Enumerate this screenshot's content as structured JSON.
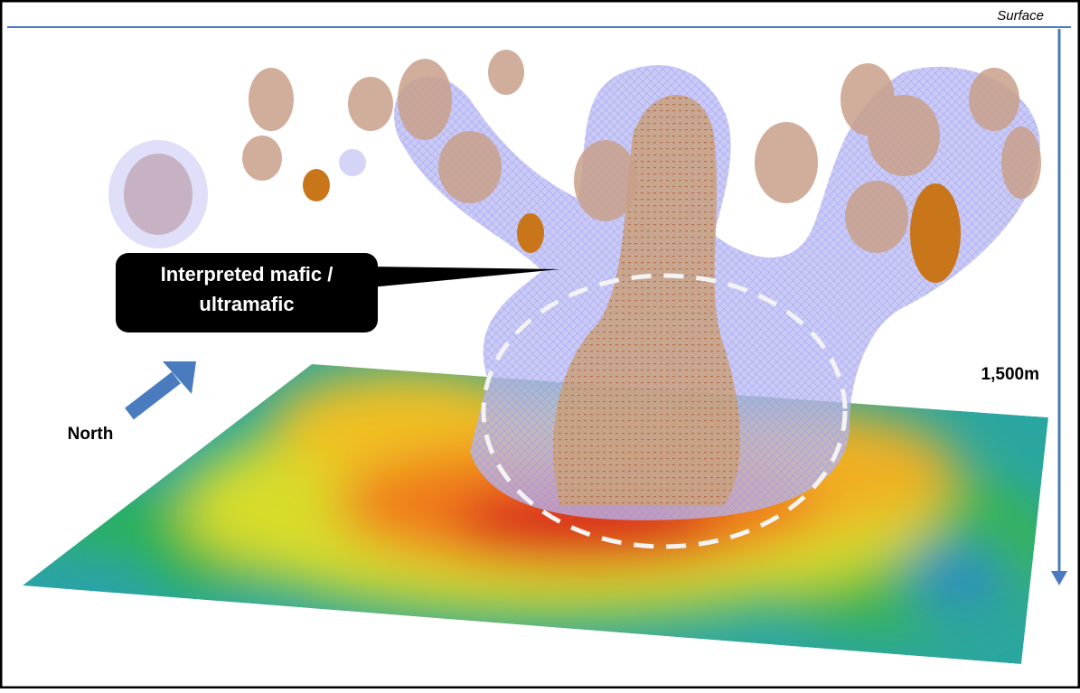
{
  "depth_scale": {
    "top_label": "Surface",
    "depth_label": "1,500m"
  },
  "orientation": {
    "label": "North"
  },
  "callout": {
    "lines": [
      "Interpreted mafic /",
      "ultramafic"
    ]
  }
}
